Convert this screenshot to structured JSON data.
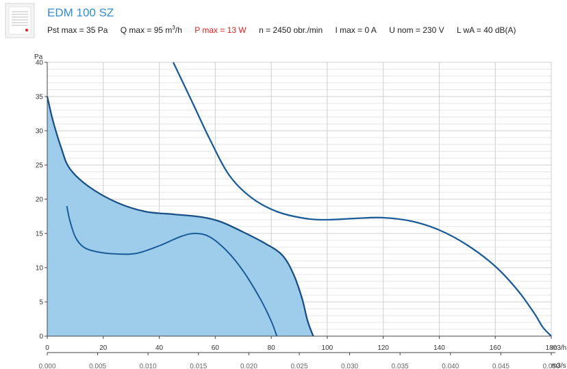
{
  "header": {
    "title": "EDM 100 SZ",
    "specs": {
      "pst_max": "Pst max = 35 Pa",
      "q_max_pre": "Q max = 95 m",
      "q_max_sup": "3",
      "q_max_post": "/h",
      "p_max": "P max = 13 W",
      "n": "n = 2450 obr./min",
      "i_max": "I max = 0 A",
      "u_nom": "U nom = 230 V",
      "lwa": "L wA = 40 dB(A)"
    },
    "highlight_color": "#e02020"
  },
  "chart_data": {
    "type": "line",
    "title": "",
    "ylabel": "Pa",
    "xlabel": "m3/h",
    "x2label": "m3/s",
    "xlim": [
      0,
      180
    ],
    "ylim": [
      0,
      40
    ],
    "x_ticks": [
      "0",
      "20",
      "40",
      "60",
      "80",
      "100",
      "120",
      "140",
      "160",
      "180"
    ],
    "x2_ticks": [
      "0.000",
      "0.005",
      "0.010",
      "0.015",
      "0.020",
      "0.025",
      "0.030",
      "0.035",
      "0.040",
      "0.045",
      "0.050"
    ],
    "y_ticks": [
      "0",
      "5",
      "10",
      "15",
      "20",
      "25",
      "30",
      "35",
      "40"
    ],
    "grid": true,
    "colors": {
      "fan_curve": "#174f86",
      "system_curve": "#1a5c99",
      "operating_area": "#9dcdeb"
    },
    "series": [
      {
        "role": "fan_curve",
        "filled": true,
        "points": [
          [
            0,
            35
          ],
          [
            2,
            31.5
          ],
          [
            5,
            27.5
          ],
          [
            8,
            24.5
          ],
          [
            15,
            21.8
          ],
          [
            25,
            19.5
          ],
          [
            35,
            18.2
          ],
          [
            45,
            17.8
          ],
          [
            55,
            17.4
          ],
          [
            62,
            16.7
          ],
          [
            70,
            15.2
          ],
          [
            78,
            13.5
          ],
          [
            84,
            11.8
          ],
          [
            88,
            9.0
          ],
          [
            91,
            5.5
          ],
          [
            93,
            2.2
          ],
          [
            95,
            0
          ]
        ]
      },
      {
        "role": "lower_curve",
        "filled": false,
        "points": [
          [
            7,
            19
          ],
          [
            8,
            17
          ],
          [
            10,
            14.5
          ],
          [
            13,
            13
          ],
          [
            18,
            12.3
          ],
          [
            25,
            12
          ],
          [
            32,
            12.1
          ],
          [
            40,
            13.2
          ],
          [
            48,
            14.6
          ],
          [
            53,
            15
          ],
          [
            58,
            14.5
          ],
          [
            64,
            12.5
          ],
          [
            70,
            9.5
          ],
          [
            76,
            5.5
          ],
          [
            80,
            2.2
          ],
          [
            82,
            0
          ]
        ]
      },
      {
        "role": "upper_curve",
        "filled": false,
        "points": [
          [
            45,
            40
          ],
          [
            52,
            34
          ],
          [
            58,
            28.8
          ],
          [
            65,
            23.5
          ],
          [
            73,
            20.2
          ],
          [
            82,
            18.2
          ],
          [
            92,
            17.2
          ],
          [
            100,
            17
          ],
          [
            110,
            17.2
          ],
          [
            120,
            17.3
          ],
          [
            130,
            16.8
          ],
          [
            140,
            15.5
          ],
          [
            150,
            13.3
          ],
          [
            160,
            10.2
          ],
          [
            168,
            6.7
          ],
          [
            174,
            3.3
          ],
          [
            177,
            1.3
          ],
          [
            180,
            0
          ]
        ]
      }
    ]
  }
}
